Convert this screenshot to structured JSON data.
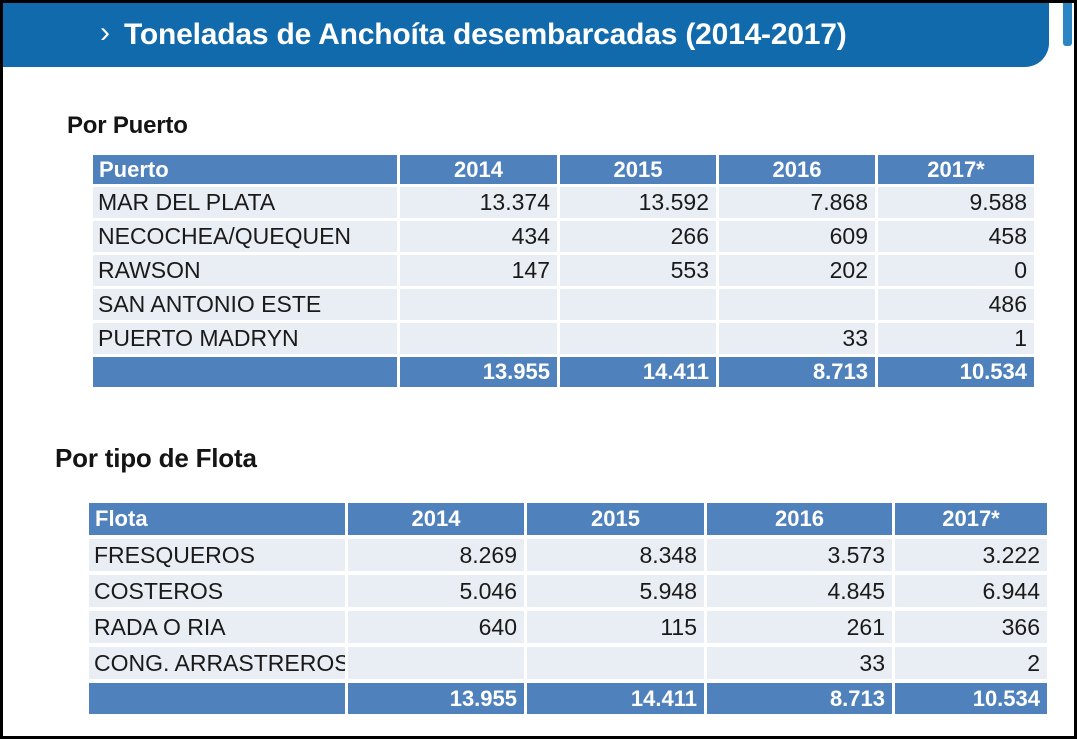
{
  "header": {
    "chevron": "›",
    "title": "Toneladas de Anchoíta desembarcadas (2014-2017)"
  },
  "colors": {
    "title_bar": "#106AAC",
    "title_bar_tab": "#2B84C4",
    "table_header": "#4F81BD",
    "row_background": "#E9EDF4",
    "body_text": "#1A1A1A",
    "header_text": "#FFFFFF"
  },
  "por_puerto": {
    "heading": "Por Puerto",
    "columns": [
      "Puerto",
      "2014",
      "2015",
      "2016",
      "2017*"
    ],
    "rows": [
      [
        "MAR DEL PLATA",
        "13.374",
        "13.592",
        "7.868",
        "9.588"
      ],
      [
        "NECOCHEA/QUEQUEN",
        "434",
        "266",
        "609",
        "458"
      ],
      [
        "RAWSON",
        "147",
        "553",
        "202",
        "0"
      ],
      [
        "SAN ANTONIO ESTE",
        "",
        "",
        "",
        "486"
      ],
      [
        "PUERTO MADRYN",
        "",
        "",
        "33",
        "1"
      ]
    ],
    "total": [
      "",
      "13.955",
      "14.411",
      "8.713",
      "10.534"
    ]
  },
  "por_flota": {
    "heading": "Por tipo de Flota",
    "columns": [
      "Flota",
      "2014",
      "2015",
      "2016",
      "2017*"
    ],
    "rows": [
      [
        "FRESQUEROS",
        "8.269",
        "8.348",
        "3.573",
        "3.222"
      ],
      [
        "COSTEROS",
        "5.046",
        "5.948",
        "4.845",
        "6.944"
      ],
      [
        "RADA O RIA",
        "640",
        "115",
        "261",
        "366"
      ],
      [
        "CONG. ARRASTREROS",
        "",
        "",
        "33",
        "2"
      ]
    ],
    "total": [
      "",
      "13.955",
      "14.411",
      "8.713",
      "10.534"
    ]
  }
}
